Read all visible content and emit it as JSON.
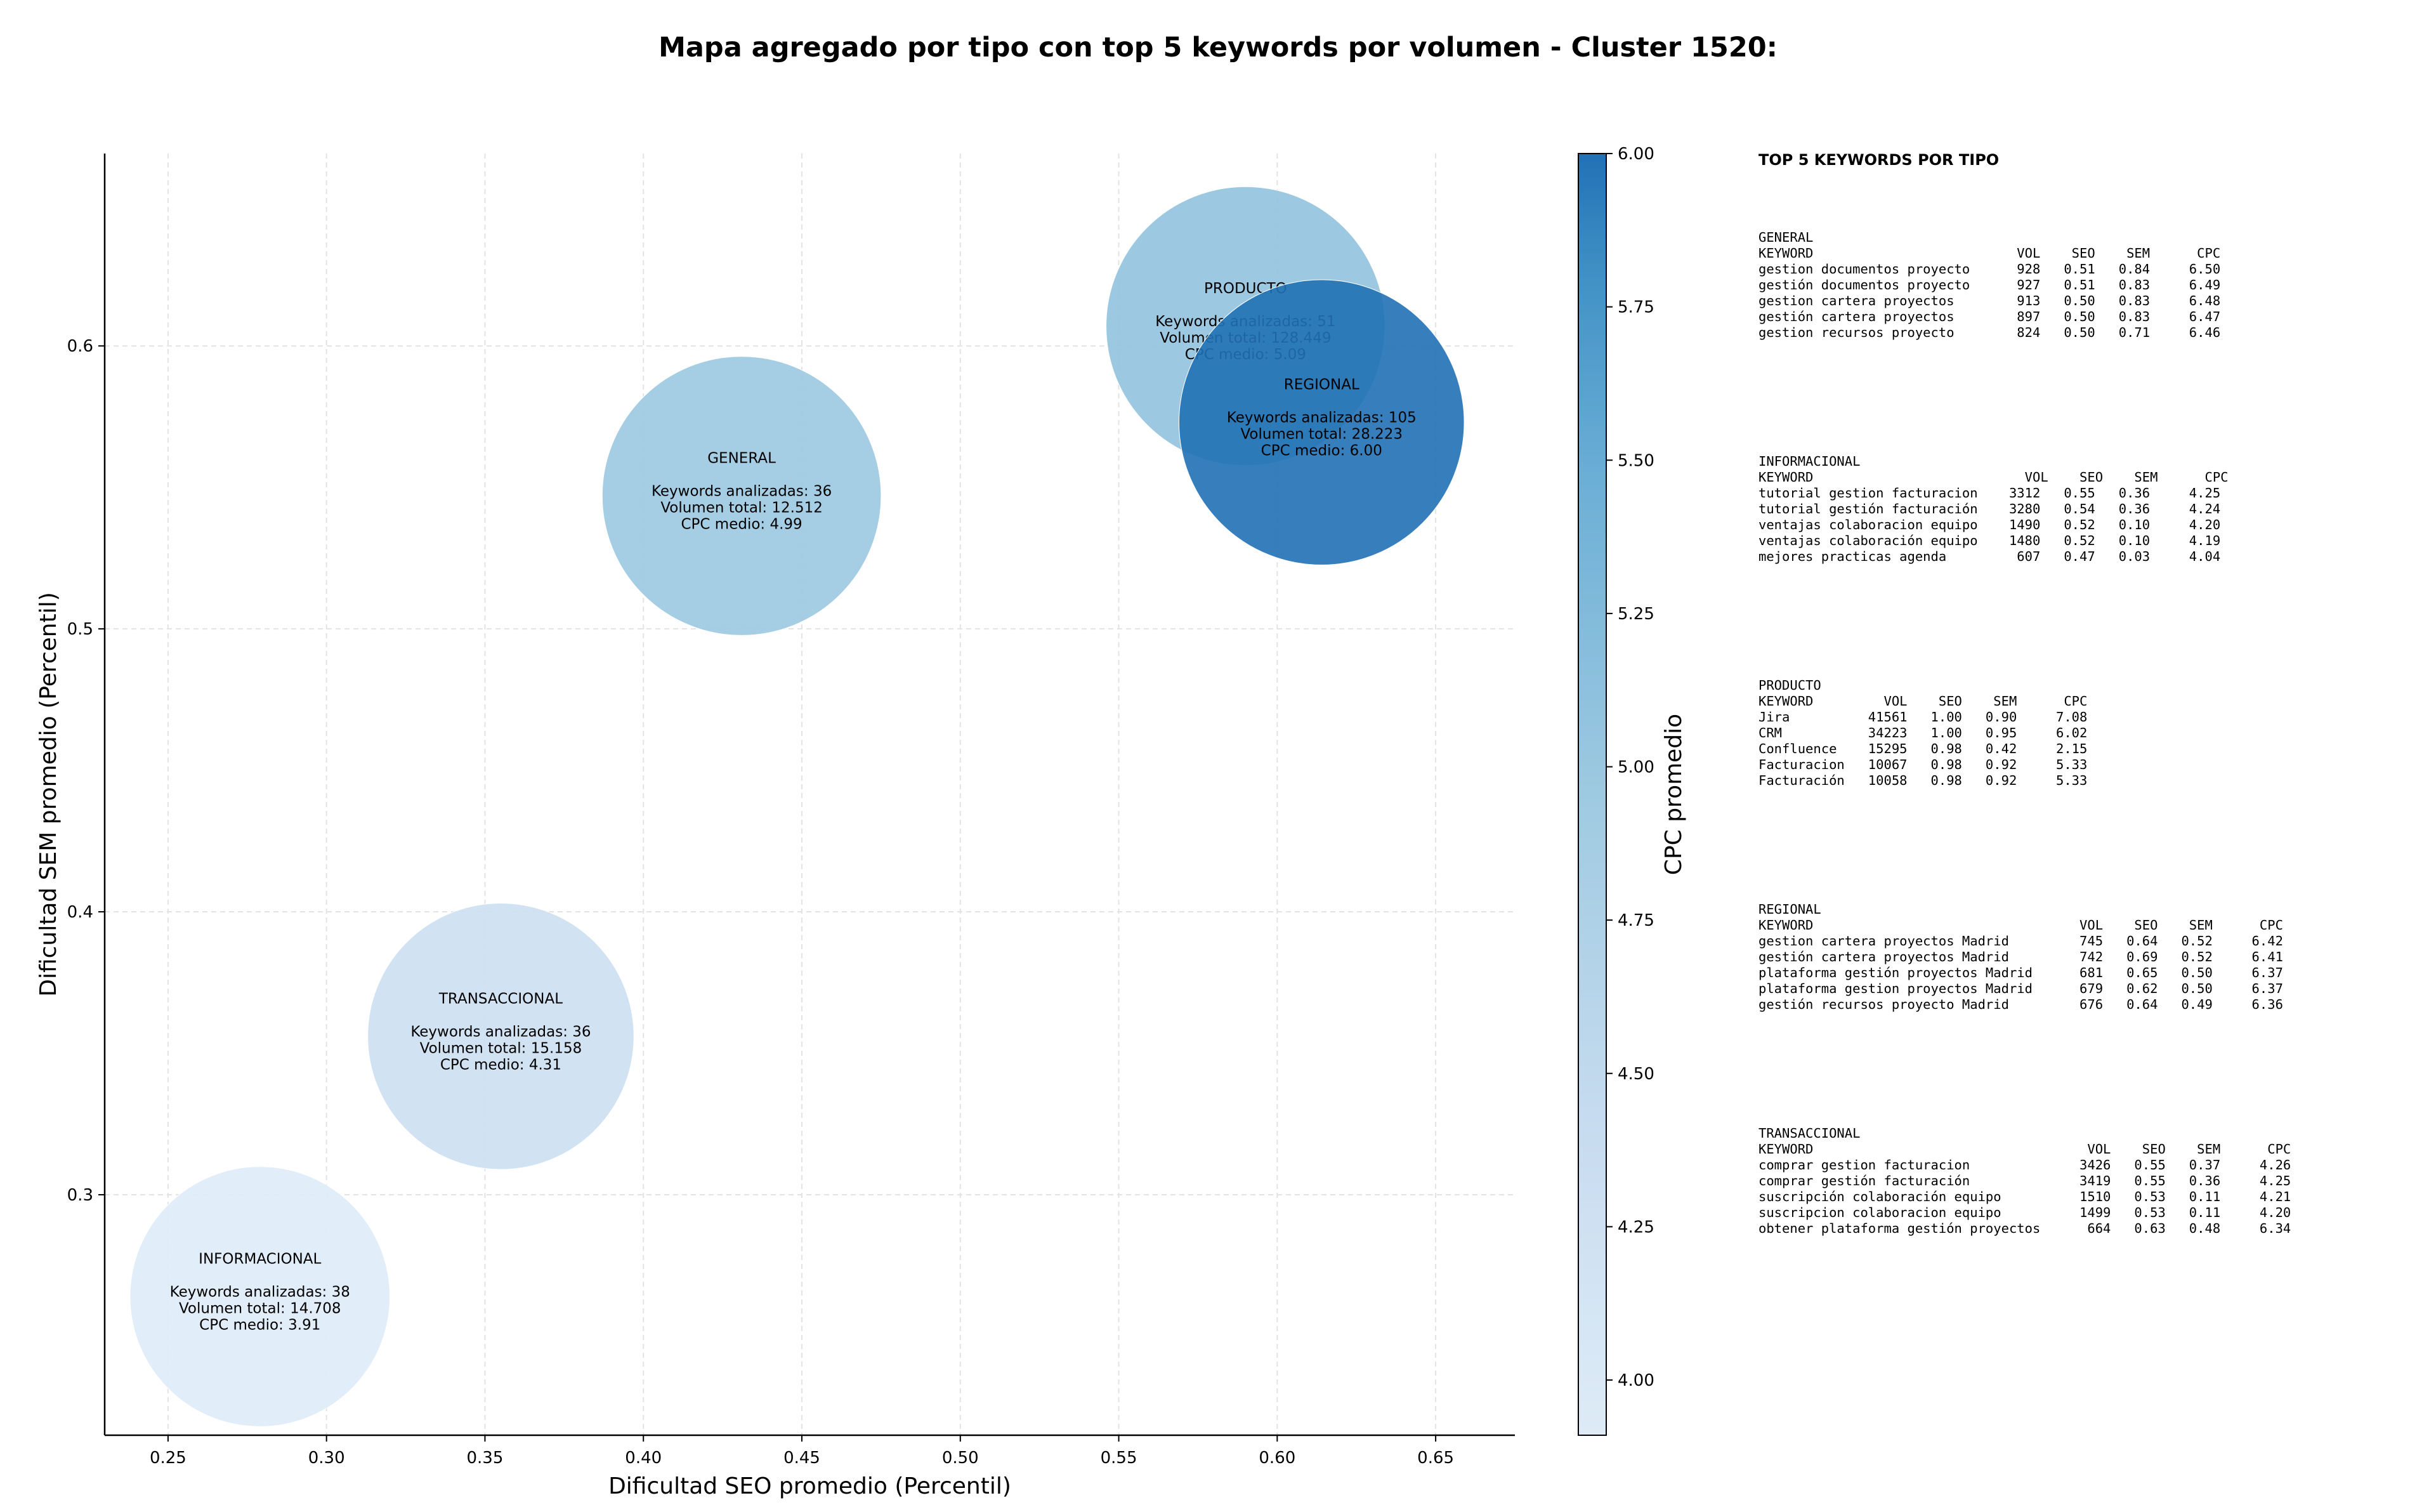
{
  "chart_data": {
    "type": "scatter",
    "title": "Mapa agregado por tipo con top 5 keywords por volumen - Cluster 1520:",
    "xlabel": "Dificultad SEO promedio (Percentil)",
    "ylabel": "Dificultad SEM promedio (Percentil)",
    "xlim": [
      0.23,
      0.675
    ],
    "ylim": [
      0.215,
      0.668
    ],
    "xticks": [
      "0.25",
      "0.30",
      "0.35",
      "0.40",
      "0.45",
      "0.50",
      "0.55",
      "0.60",
      "0.65"
    ],
    "yticks": [
      "0.3",
      "0.4",
      "0.5",
      "0.6"
    ],
    "grid": true,
    "colorbar": {
      "label": "CPC promedio",
      "min": 3.91,
      "max": 6.0,
      "ticks": [
        "4.00",
        "4.25",
        "4.50",
        "4.75",
        "5.00",
        "5.25",
        "5.50",
        "5.75",
        "6.00"
      ],
      "colormap": "Blues"
    },
    "bubbles": [
      {
        "name": "PRODUCTO",
        "x": 0.59,
        "y": 0.607,
        "cpc": 5.09,
        "radius_data_x": 0.044,
        "lines": [
          "Keywords analizadas: 51",
          "Volumen total: 128.449",
          "CPC medio: 5.09"
        ]
      },
      {
        "name": "GENERAL",
        "x": 0.431,
        "y": 0.547,
        "cpc": 4.99,
        "radius_data_x": 0.044,
        "lines": [
          "Keywords analizadas: 36",
          "Volumen total: 12.512",
          "CPC medio: 4.99"
        ]
      },
      {
        "name": "TRANSACCIONAL",
        "x": 0.355,
        "y": 0.356,
        "cpc": 4.31,
        "radius_data_x": 0.042,
        "lines": [
          "Keywords analizadas: 36",
          "Volumen total: 15.158",
          "CPC medio: 4.31"
        ]
      },
      {
        "name": "INFORMACIONAL",
        "x": 0.279,
        "y": 0.264,
        "cpc": 3.91,
        "radius_data_x": 0.041,
        "lines": [
          "Keywords analizadas: 38",
          "Volumen total: 14.708",
          "CPC medio: 3.91"
        ]
      },
      {
        "name": "REGIONAL",
        "x": 0.614,
        "y": 0.573,
        "cpc": 6.0,
        "radius_data_x": 0.045,
        "lines": [
          "Keywords analizadas: 105",
          "Volumen total: 28.223",
          "CPC medio: 6.00"
        ]
      }
    ]
  },
  "keyword_panel": {
    "title": "TOP 5 KEYWORDS POR TIPO",
    "sections": [
      {
        "text": "GENERAL\nKEYWORD                          VOL    SEO    SEM      CPC\ngestion documentos proyecto      928   0.51   0.84     6.50\ngestión documentos proyecto      927   0.51   0.83     6.49\ngestion cartera proyectos        913   0.50   0.83     6.48\ngestión cartera proyectos        897   0.50   0.83     6.47\ngestion recursos proyecto        824   0.50   0.71     6.46"
      },
      {
        "text": "INFORMACIONAL\nKEYWORD                           VOL    SEO    SEM      CPC\ntutorial gestion facturacion    3312   0.55   0.36     4.25\ntutorial gestión facturación    3280   0.54   0.36     4.24\nventajas colaboracion equipo    1490   0.52   0.10     4.20\nventajas colaboración equipo    1480   0.52   0.10     4.19\nmejores practicas agenda         607   0.47   0.03     4.04"
      },
      {
        "text": "PRODUCTO\nKEYWORD         VOL    SEO    SEM      CPC\nJira          41561   1.00   0.90     7.08\nCRM           34223   1.00   0.95     6.02\nConfluence    15295   0.98   0.42     2.15\nFacturacion   10067   0.98   0.92     5.33\nFacturación   10058   0.98   0.92     5.33"
      },
      {
        "text": "REGIONAL\nKEYWORD                                  VOL    SEO    SEM      CPC\ngestion cartera proyectos Madrid         745   0.64   0.52     6.42\ngestión cartera proyectos Madrid         742   0.69   0.52     6.41\nplataforma gestión proyectos Madrid      681   0.65   0.50     6.37\nplataforma gestion proyectos Madrid      679   0.62   0.50     6.37\ngestión recursos proyecto Madrid         676   0.64   0.49     6.36"
      },
      {
        "text": "TRANSACCIONAL\nKEYWORD                                   VOL    SEO    SEM      CPC\ncomprar gestion facturacion              3426   0.55   0.37     4.26\ncomprar gestión facturación              3419   0.55   0.36     4.25\nsuscripción colaboración equipo          1510   0.53   0.11     4.21\nsuscripcion colaboracion equipo          1499   0.53   0.11     4.20\nobtener plataforma gestión proyectos      664   0.63   0.48     6.34"
      }
    ]
  }
}
